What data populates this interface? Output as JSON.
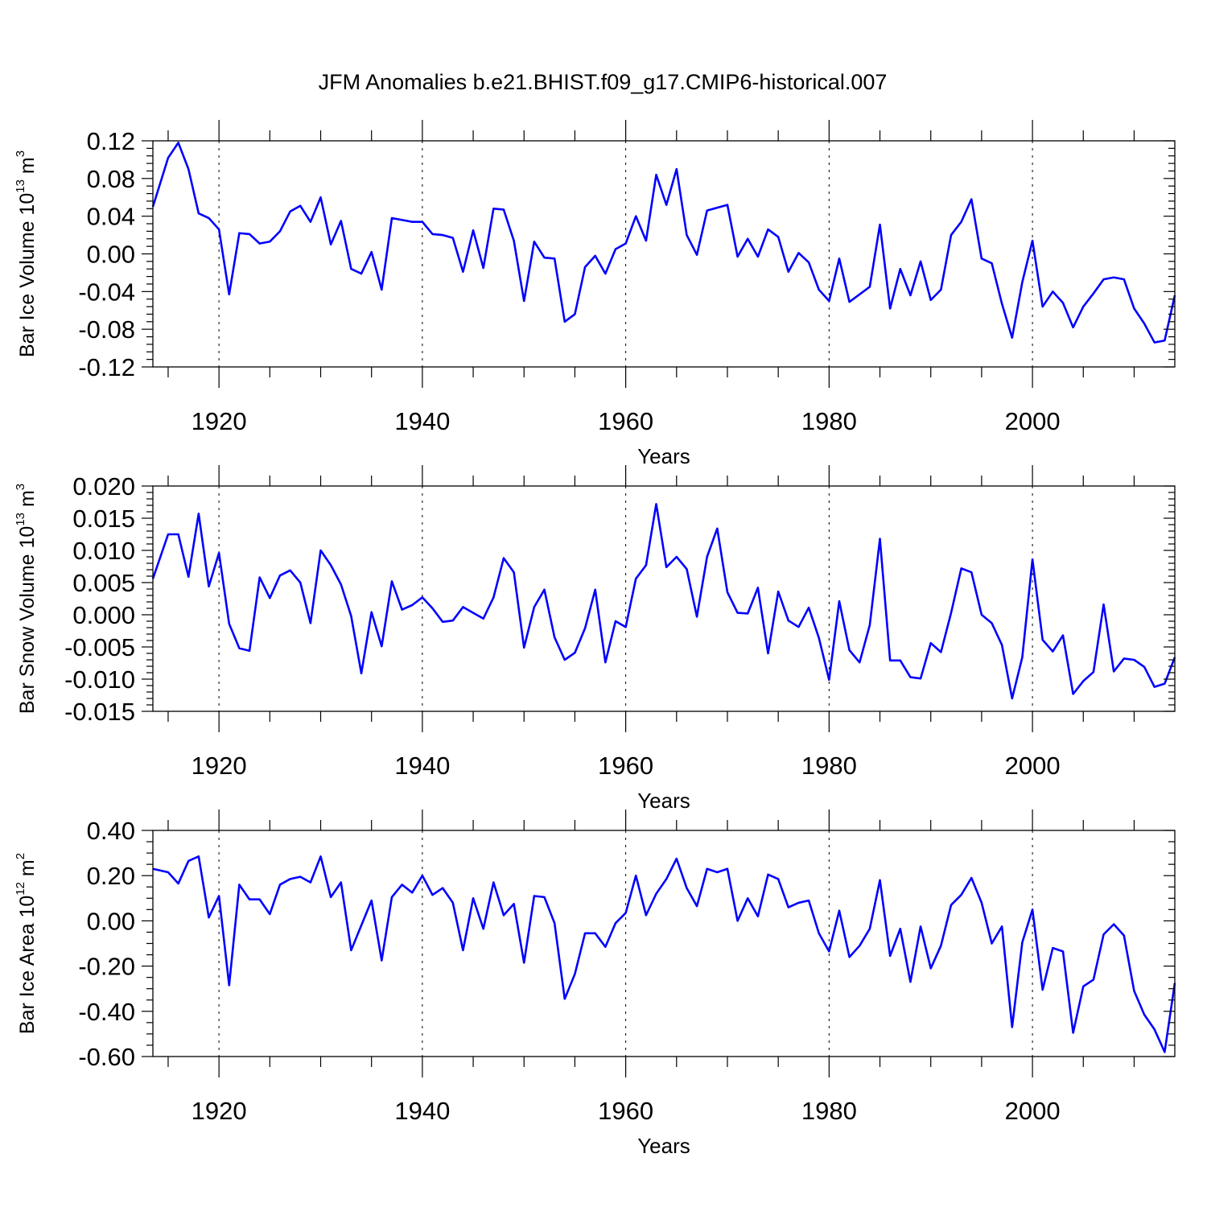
{
  "chart_data": [
    {
      "type": "line",
      "title": "JFM Anomalies b.e21.BHIST.f09_g17.CMIP6-historical.007",
      "xlabel": "Years",
      "ylabel": {
        "text": "Bar Ice Volume 10",
        "exponent": "13",
        "unit": " m",
        "unit_exponent": "3"
      },
      "xlim": [
        1913.5,
        2014.0
      ],
      "ylim": [
        -0.12,
        0.12
      ],
      "yticks": [
        "0.12",
        "0.08",
        "0.04",
        "0.00",
        "-0.04",
        "-0.08",
        "-0.12"
      ],
      "xticks": [
        "1920",
        "1940",
        "1960",
        "1980",
        "2000"
      ],
      "grid": "dashed verticals at major x ticks",
      "line_color": "#0000ff",
      "x": [
        1913.5,
        1915,
        1916,
        1917,
        1918,
        1919,
        1920,
        1921,
        1922,
        1923,
        1924,
        1925,
        1926,
        1927,
        1928,
        1929,
        1930,
        1931,
        1932,
        1933,
        1934,
        1935,
        1936,
        1937,
        1938,
        1939,
        1940,
        1941,
        1942,
        1943,
        1944,
        1945,
        1946,
        1947,
        1948,
        1949,
        1950,
        1951,
        1952,
        1953,
        1954,
        1955,
        1956,
        1957,
        1958,
        1959,
        1960,
        1961,
        1962,
        1963,
        1964,
        1965,
        1966,
        1967,
        1968,
        1969,
        1970,
        1971,
        1972,
        1973,
        1974,
        1975,
        1976,
        1977,
        1978,
        1979,
        1980,
        1981,
        1982,
        1983,
        1984,
        1985,
        1986,
        1987,
        1988,
        1989,
        1990,
        1991,
        1992,
        1993,
        1994,
        1995,
        1996,
        1997,
        1998,
        1999,
        2000,
        2001,
        2002,
        2003,
        2004,
        2005,
        2006,
        2007,
        2008,
        2009,
        2010,
        2011,
        2012,
        2013,
        2014
      ],
      "values": [
        0.05,
        0.102,
        0.118,
        0.09,
        0.043,
        0.038,
        0.026,
        -0.043,
        0.022,
        0.021,
        0.011,
        0.013,
        0.024,
        0.045,
        0.051,
        0.034,
        0.06,
        0.01,
        0.035,
        -0.016,
        -0.021,
        0.002,
        -0.038,
        0.038,
        0.036,
        0.034,
        0.034,
        0.021,
        0.02,
        0.017,
        -0.019,
        0.025,
        -0.015,
        0.048,
        0.047,
        0.014,
        -0.05,
        0.013,
        -0.004,
        -0.005,
        -0.072,
        -0.064,
        -0.014,
        -0.002,
        -0.021,
        0.005,
        0.011,
        0.04,
        0.014,
        0.084,
        0.052,
        0.09,
        0.02,
        -0.001,
        0.046,
        0.049,
        0.052,
        -0.003,
        0.016,
        -0.003,
        0.026,
        0.018,
        -0.019,
        0.001,
        -0.009,
        -0.038,
        -0.05,
        -0.005,
        -0.051,
        -0.043,
        -0.035,
        0.031,
        -0.058,
        -0.016,
        -0.044,
        -0.008,
        -0.049,
        -0.038,
        0.02,
        0.034,
        0.058,
        -0.005,
        -0.01,
        -0.053,
        -0.089,
        -0.03,
        0.014,
        -0.056,
        -0.04,
        -0.052,
        -0.078,
        -0.056,
        -0.042,
        -0.027,
        -0.025,
        -0.027,
        -0.058,
        -0.074,
        -0.094,
        -0.092,
        -0.044
      ]
    },
    {
      "type": "line",
      "xlabel": "Years",
      "ylabel": {
        "text": "Bar Snow Volume 10",
        "exponent": "13",
        "unit": " m",
        "unit_exponent": "3"
      },
      "xlim": [
        1913.5,
        2014.0
      ],
      "ylim": [
        -0.015,
        0.02
      ],
      "yticks": [
        "0.020",
        "0.015",
        "0.010",
        "0.005",
        "0.000",
        "-0.005",
        "-0.010",
        "-0.015"
      ],
      "xticks": [
        "1920",
        "1940",
        "1960",
        "1980",
        "2000"
      ],
      "grid": "dashed verticals at major x ticks",
      "line_color": "#0000ff",
      "x": [
        1913.5,
        1915,
        1916,
        1917,
        1918,
        1919,
        1920,
        1921,
        1922,
        1923,
        1924,
        1925,
        1926,
        1927,
        1928,
        1929,
        1930,
        1931,
        1932,
        1933,
        1934,
        1935,
        1936,
        1937,
        1938,
        1939,
        1940,
        1941,
        1942,
        1943,
        1944,
        1945,
        1946,
        1947,
        1948,
        1949,
        1950,
        1951,
        1952,
        1953,
        1954,
        1955,
        1956,
        1957,
        1958,
        1959,
        1960,
        1961,
        1962,
        1963,
        1964,
        1965,
        1966,
        1967,
        1968,
        1969,
        1970,
        1971,
        1972,
        1973,
        1974,
        1975,
        1976,
        1977,
        1978,
        1979,
        1980,
        1981,
        1982,
        1983,
        1984,
        1985,
        1986,
        1987,
        1988,
        1989,
        1990,
        1991,
        1992,
        1993,
        1994,
        1995,
        1996,
        1997,
        1998,
        1999,
        2000,
        2001,
        2002,
        2003,
        2004,
        2005,
        2006,
        2007,
        2008,
        2009,
        2010,
        2011,
        2012,
        2013,
        2014
      ],
      "values": [
        0.0056,
        0.0125,
        0.0125,
        0.0059,
        0.0157,
        0.0044,
        0.0096,
        -0.0014,
        -0.0052,
        -0.0056,
        0.0058,
        0.0026,
        0.0061,
        0.0069,
        0.005,
        -0.0013,
        0.01,
        0.0077,
        0.0047,
        -0.0002,
        -0.0091,
        0.0004,
        -0.0049,
        0.0052,
        0.0008,
        0.0015,
        0.0027,
        0.001,
        -0.0011,
        -0.0009,
        0.0012,
        0.0003,
        -0.0006,
        0.0027,
        0.0088,
        0.0066,
        -0.0051,
        0.0012,
        0.0039,
        -0.0035,
        -0.007,
        -0.0059,
        -0.0021,
        0.0039,
        -0.0074,
        -0.001,
        -0.0019,
        0.0056,
        0.0077,
        0.0172,
        0.0074,
        0.009,
        0.0071,
        -0.0003,
        0.009,
        0.0134,
        0.0035,
        0.0003,
        0.0002,
        0.0042,
        -0.006,
        0.0036,
        -0.0009,
        -0.0019,
        0.0011,
        -0.0036,
        -0.0101,
        0.0021,
        -0.0055,
        -0.0074,
        -0.0016,
        0.0118,
        -0.0071,
        -0.0071,
        -0.0097,
        -0.0099,
        -0.0044,
        -0.0058,
        0.0003,
        0.0072,
        0.0066,
        0.0,
        -0.0013,
        -0.0047,
        -0.013,
        -0.0066,
        0.0086,
        -0.0039,
        -0.0057,
        -0.0032,
        -0.0123,
        -0.0103,
        -0.0089,
        0.0016,
        -0.0088,
        -0.0068,
        -0.007,
        -0.0081,
        -0.0112,
        -0.0107,
        -0.0066
      ]
    },
    {
      "type": "line",
      "xlabel": "Years",
      "ylabel": {
        "text": "Bar Ice Area 10",
        "exponent": "12",
        "unit": " m",
        "unit_exponent": "2"
      },
      "xlim": [
        1913.5,
        2014.0
      ],
      "ylim": [
        -0.6,
        0.4
      ],
      "yticks": [
        "0.40",
        "0.20",
        "0.00",
        "-0.20",
        "-0.40",
        "-0.60"
      ],
      "xticks": [
        "1920",
        "1940",
        "1960",
        "1980",
        "2000"
      ],
      "grid": "dashed verticals at major x ticks",
      "line_color": "#0000ff",
      "x": [
        1913.5,
        1915,
        1916,
        1917,
        1918,
        1919,
        1920,
        1921,
        1922,
        1923,
        1924,
        1925,
        1926,
        1927,
        1928,
        1929,
        1930,
        1931,
        1932,
        1933,
        1934,
        1935,
        1936,
        1937,
        1938,
        1939,
        1940,
        1941,
        1942,
        1943,
        1944,
        1945,
        1946,
        1947,
        1948,
        1949,
        1950,
        1951,
        1952,
        1953,
        1954,
        1955,
        1956,
        1957,
        1958,
        1959,
        1960,
        1961,
        1962,
        1963,
        1964,
        1965,
        1966,
        1967,
        1968,
        1969,
        1970,
        1971,
        1972,
        1973,
        1974,
        1975,
        1976,
        1977,
        1978,
        1979,
        1980,
        1981,
        1982,
        1983,
        1984,
        1985,
        1986,
        1987,
        1988,
        1989,
        1990,
        1991,
        1992,
        1993,
        1994,
        1995,
        1996,
        1997,
        1998,
        1999,
        2000,
        2001,
        2002,
        2003,
        2004,
        2005,
        2006,
        2007,
        2008,
        2009,
        2010,
        2011,
        2012,
        2013,
        2014
      ],
      "values": [
        0.23,
        0.215,
        0.165,
        0.265,
        0.285,
        0.015,
        0.11,
        -0.285,
        0.16,
        0.095,
        0.095,
        0.03,
        0.16,
        0.185,
        0.195,
        0.17,
        0.285,
        0.105,
        0.17,
        -0.13,
        -0.02,
        0.09,
        -0.175,
        0.105,
        0.16,
        0.125,
        0.2,
        0.115,
        0.145,
        0.08,
        -0.13,
        0.1,
        -0.035,
        0.17,
        0.025,
        0.075,
        -0.185,
        0.11,
        0.105,
        -0.01,
        -0.345,
        -0.235,
        -0.055,
        -0.055,
        -0.115,
        -0.01,
        0.035,
        0.2,
        0.025,
        0.12,
        0.185,
        0.275,
        0.145,
        0.065,
        0.23,
        0.215,
        0.23,
        0.0,
        0.1,
        0.02,
        0.205,
        0.185,
        0.06,
        0.08,
        0.09,
        -0.055,
        -0.135,
        0.045,
        -0.16,
        -0.11,
        -0.035,
        0.18,
        -0.155,
        -0.035,
        -0.27,
        -0.025,
        -0.21,
        -0.11,
        0.07,
        0.115,
        0.19,
        0.08,
        -0.1,
        -0.025,
        -0.47,
        -0.095,
        0.05,
        -0.305,
        -0.12,
        -0.135,
        -0.495,
        -0.29,
        -0.26,
        -0.06,
        -0.015,
        -0.065,
        -0.31,
        -0.415,
        -0.48,
        -0.58,
        -0.275
      ]
    }
  ]
}
